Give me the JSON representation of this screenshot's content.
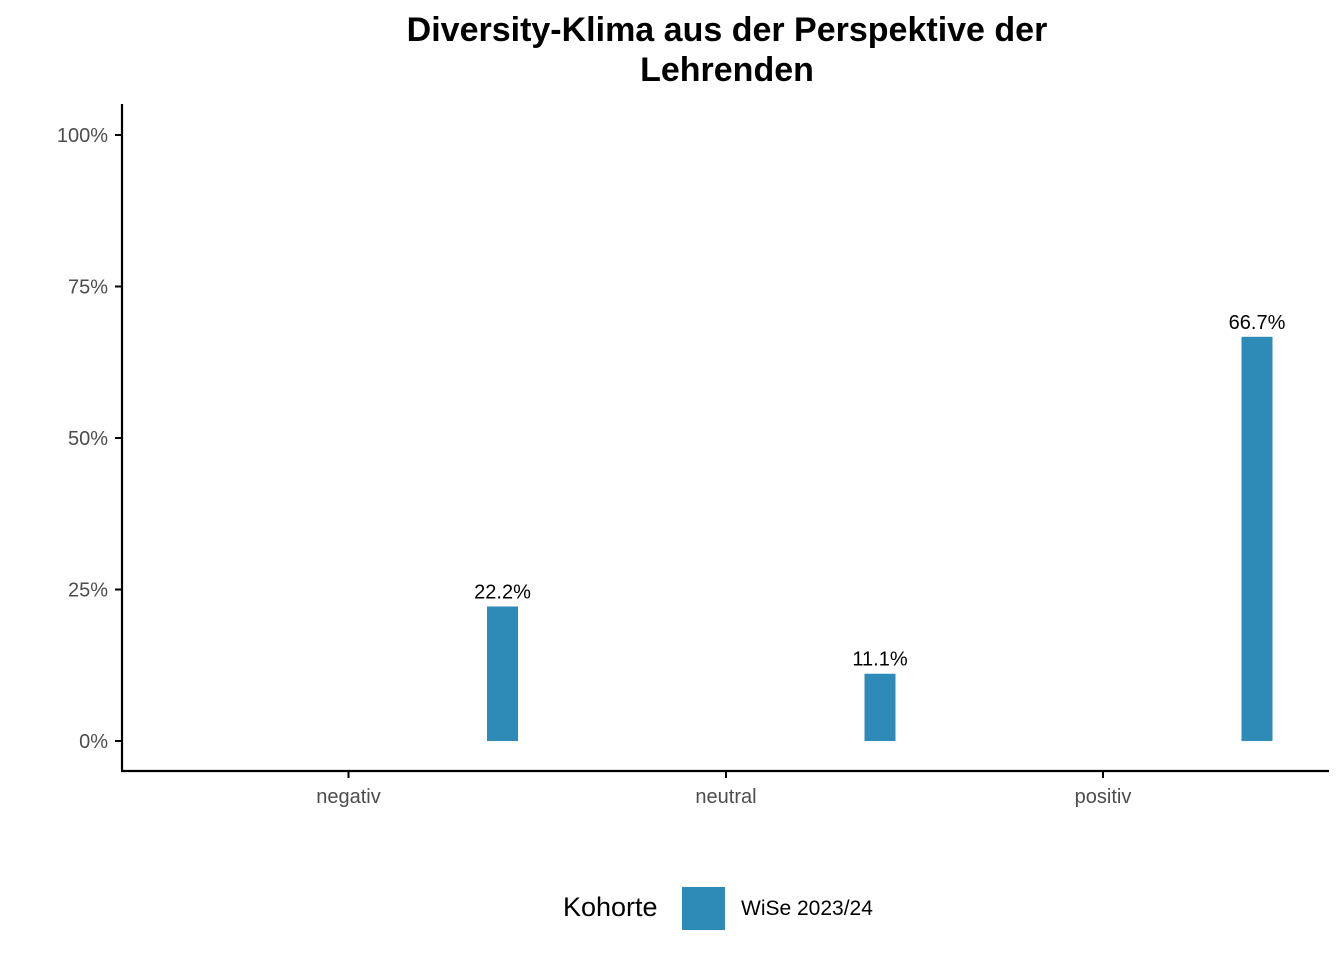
{
  "chart_data": {
    "type": "bar",
    "title_lines": [
      "Diversity-Klima aus der Perspektive der",
      "Lehrenden"
    ],
    "xlabel": "",
    "ylabel": "",
    "categories": [
      "negativ",
      "neutral",
      "positiv"
    ],
    "series": [
      {
        "name": "WiSe 2023/24",
        "values": [
          22.2,
          11.1,
          66.7
        ],
        "labels": [
          "22.2%",
          "11.1%",
          "66.7%"
        ],
        "color": "#2E8BB8"
      }
    ],
    "ylim": [
      0,
      100
    ],
    "yticks": [
      0,
      25,
      50,
      75,
      100
    ],
    "ytick_labels": [
      "0%",
      "25%",
      "50%",
      "75%",
      "100%"
    ],
    "grid": false,
    "legend": {
      "title": "Kohorte",
      "position": "bottom"
    }
  }
}
